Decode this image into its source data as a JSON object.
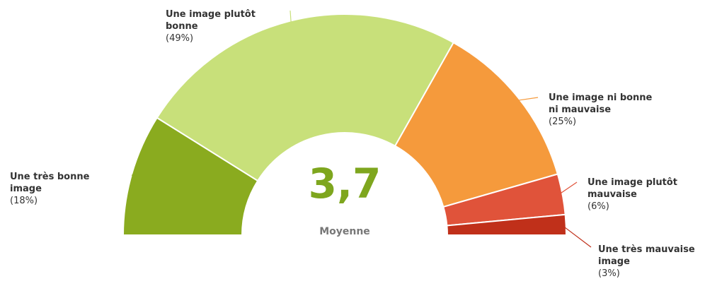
{
  "chart_data": {
    "type": "semi-donut",
    "categories": [
      "Une très bonne image",
      "Une image plutôt bonne",
      "Une image ni bonne ni mauvaise",
      "Une image plutôt mauvaise",
      "Une très mauvaise image"
    ],
    "values": [
      18,
      49,
      25,
      6,
      3
    ],
    "value_labels": [
      "(18%)",
      "(49%)",
      "(25%)",
      "(6%)",
      "(3%)"
    ],
    "colors": [
      "#8aab1f",
      "#c8e07a",
      "#f59a3c",
      "#e0533a",
      "#c0301a"
    ],
    "center_text": "3,7",
    "center_caption": "Moyenne"
  }
}
